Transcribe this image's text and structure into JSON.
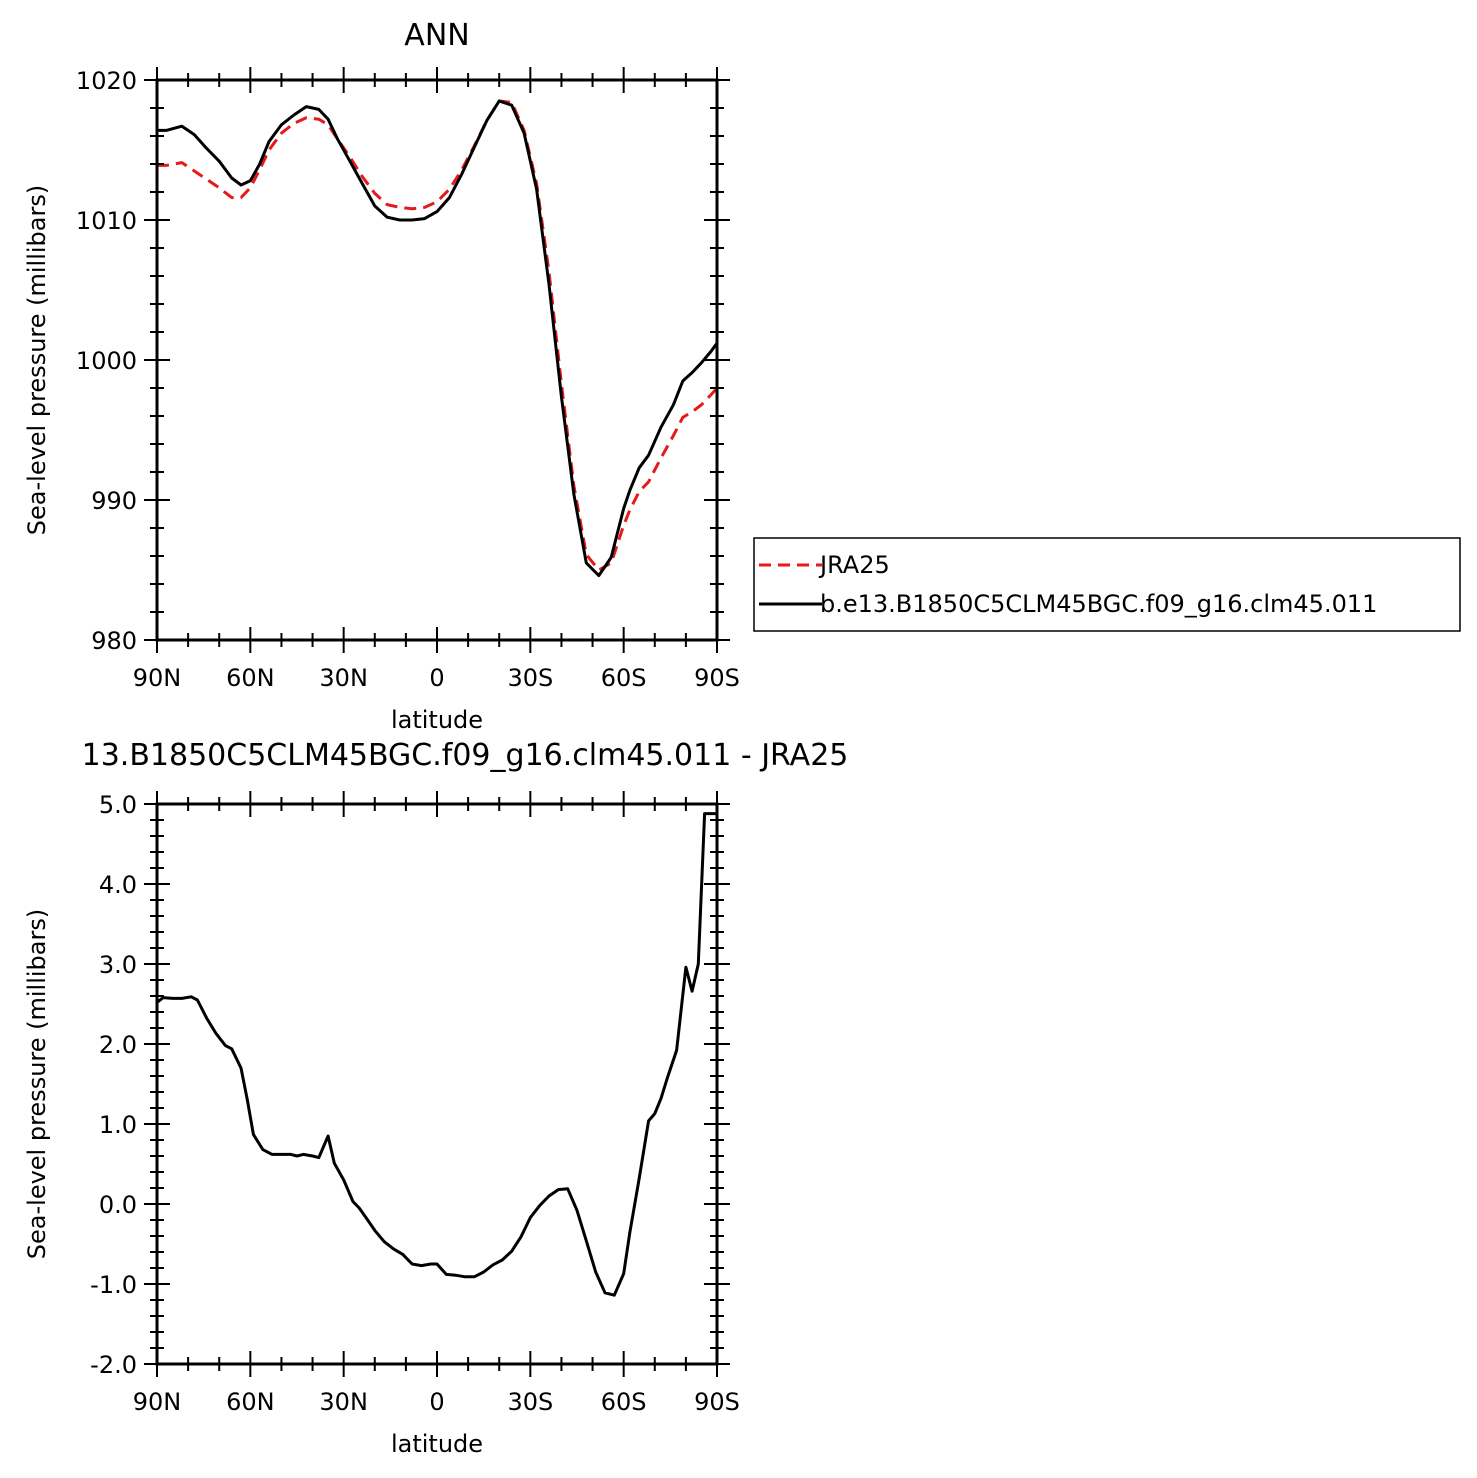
{
  "charts": [
    {
      "title": "ANN",
      "xlabel": "latitude",
      "ylabel": "Sea-level pressure (millibars)",
      "x_tick_labels": [
        "90N",
        "60N",
        "30N",
        "0",
        "30S",
        "60S",
        "90S"
      ],
      "y_tick_labels": [
        "980",
        "990",
        "1000",
        "1010",
        "1020"
      ],
      "legend": [
        "JRA25",
        "b.e13.B1850C5CLM45BGC.f09_g16.clm45.011"
      ],
      "colors": {
        "JRA25": "#e41a1c",
        "model": "#000000"
      }
    },
    {
      "title": "13.B1850C5CLM45BGC.f09_g16.clm45.011 - JRA25",
      "xlabel": "latitude",
      "ylabel": "Sea-level pressure (millibars)",
      "x_tick_labels": [
        "90N",
        "60N",
        "30N",
        "0",
        "30S",
        "60S",
        "90S"
      ],
      "y_tick_labels": [
        "-2.0",
        "-1.0",
        "0.0",
        "1.0",
        "2.0",
        "3.0",
        "4.0",
        "5.0"
      ],
      "colors": {
        "diff": "#000000"
      }
    }
  ],
  "chart_data": [
    {
      "type": "line",
      "x": [
        90,
        87,
        82,
        78,
        74,
        70,
        66,
        63,
        60,
        57,
        54,
        50,
        46,
        42,
        38,
        35,
        32,
        28,
        24,
        20,
        16,
        12,
        8,
        4,
        0,
        -4,
        -8,
        -12,
        -16,
        -20,
        -24,
        -28,
        -32,
        -36,
        -40,
        -44,
        -48,
        -52,
        -56,
        -60,
        -62,
        -65,
        -68,
        -72,
        -76,
        -79,
        -82,
        -85,
        -88,
        -90
      ],
      "series": [
        {
          "name": "JRA25",
          "values": [
            1013.9,
            1013.9,
            1014.1,
            1013.5,
            1012.9,
            1012.3,
            1011.6,
            1011.6,
            1012.3,
            1013.6,
            1015.0,
            1016.2,
            1016.9,
            1017.3,
            1017.2,
            1016.8,
            1015.8,
            1014.5,
            1013.1,
            1011.9,
            1011.1,
            1010.9,
            1010.8,
            1010.9,
            1011.3,
            1012.2,
            1013.6,
            1015.3,
            1017.1,
            1018.5,
            1018.4,
            1016.4,
            1012.6,
            1006.3,
            998.3,
            991.0,
            986.1,
            985.0,
            985.5,
            988.2,
            989.3,
            990.6,
            991.3,
            993.0,
            994.6,
            995.9,
            996.3,
            996.8,
            997.5,
            998.0
          ]
        },
        {
          "name": "b.e13.B1850C5CLM45BGC.f09_g16.clm45.011",
          "values": [
            1016.4,
            1016.4,
            1016.7,
            1016.1,
            1015.1,
            1014.2,
            1013.0,
            1012.5,
            1012.8,
            1014.0,
            1015.6,
            1016.8,
            1017.5,
            1018.1,
            1017.9,
            1017.2,
            1015.8,
            1014.2,
            1012.6,
            1011.0,
            1010.2,
            1010.0,
            1010.0,
            1010.1,
            1010.6,
            1011.6,
            1013.3,
            1015.2,
            1017.1,
            1018.5,
            1018.2,
            1016.2,
            1012.2,
            1005.4,
            997.4,
            990.4,
            985.5,
            984.6,
            985.9,
            989.4,
            990.7,
            992.3,
            993.2,
            995.2,
            996.8,
            998.5,
            999.1,
            999.8,
            1000.6,
            1001.2
          ]
        }
      ],
      "xlim": [
        90,
        -90
      ],
      "ylim": [
        980,
        1020
      ],
      "grid": false,
      "legend_position": "right"
    },
    {
      "type": "line",
      "x": [
        90,
        88,
        85,
        82,
        79,
        77,
        74,
        71,
        68,
        66,
        63,
        61,
        59,
        56,
        53,
        50,
        47,
        45,
        43,
        40,
        38,
        35,
        33,
        30,
        27,
        25,
        23,
        20,
        17,
        14,
        11,
        8,
        5,
        2,
        0,
        -3,
        -6,
        -9,
        -12,
        -15,
        -18,
        -21,
        -24,
        -27,
        -30,
        -33,
        -36,
        -39,
        -42,
        -45,
        -48,
        -51,
        -54,
        -57,
        -60,
        -62,
        -65,
        -68,
        -70,
        -72,
        -74,
        -77,
        -80,
        -82,
        -84,
        -86,
        -88,
        -90
      ],
      "series": [
        {
          "name": "",
          "values": [
            2.52,
            2.58,
            2.57,
            2.57,
            2.59,
            2.55,
            2.32,
            2.13,
            1.98,
            1.94,
            1.7,
            1.31,
            0.87,
            0.68,
            0.62,
            0.62,
            0.62,
            0.6,
            0.62,
            0.6,
            0.58,
            0.85,
            0.51,
            0.3,
            0.03,
            -0.05,
            -0.16,
            -0.33,
            -0.47,
            -0.56,
            -0.63,
            -0.75,
            -0.77,
            -0.75,
            -0.75,
            -0.88,
            -0.89,
            -0.91,
            -0.91,
            -0.85,
            -0.76,
            -0.7,
            -0.59,
            -0.41,
            -0.17,
            -0.02,
            0.1,
            0.18,
            0.19,
            -0.08,
            -0.46,
            -0.85,
            -1.11,
            -1.14,
            -0.87,
            -0.35,
            0.32,
            1.04,
            1.13,
            1.32,
            1.57,
            1.92,
            2.96,
            2.66,
            3.0,
            4.88,
            4.88,
            4.88
          ]
        }
      ],
      "xlim": [
        90,
        -90
      ],
      "ylim": [
        -2.0,
        5.0
      ],
      "grid": false
    }
  ]
}
